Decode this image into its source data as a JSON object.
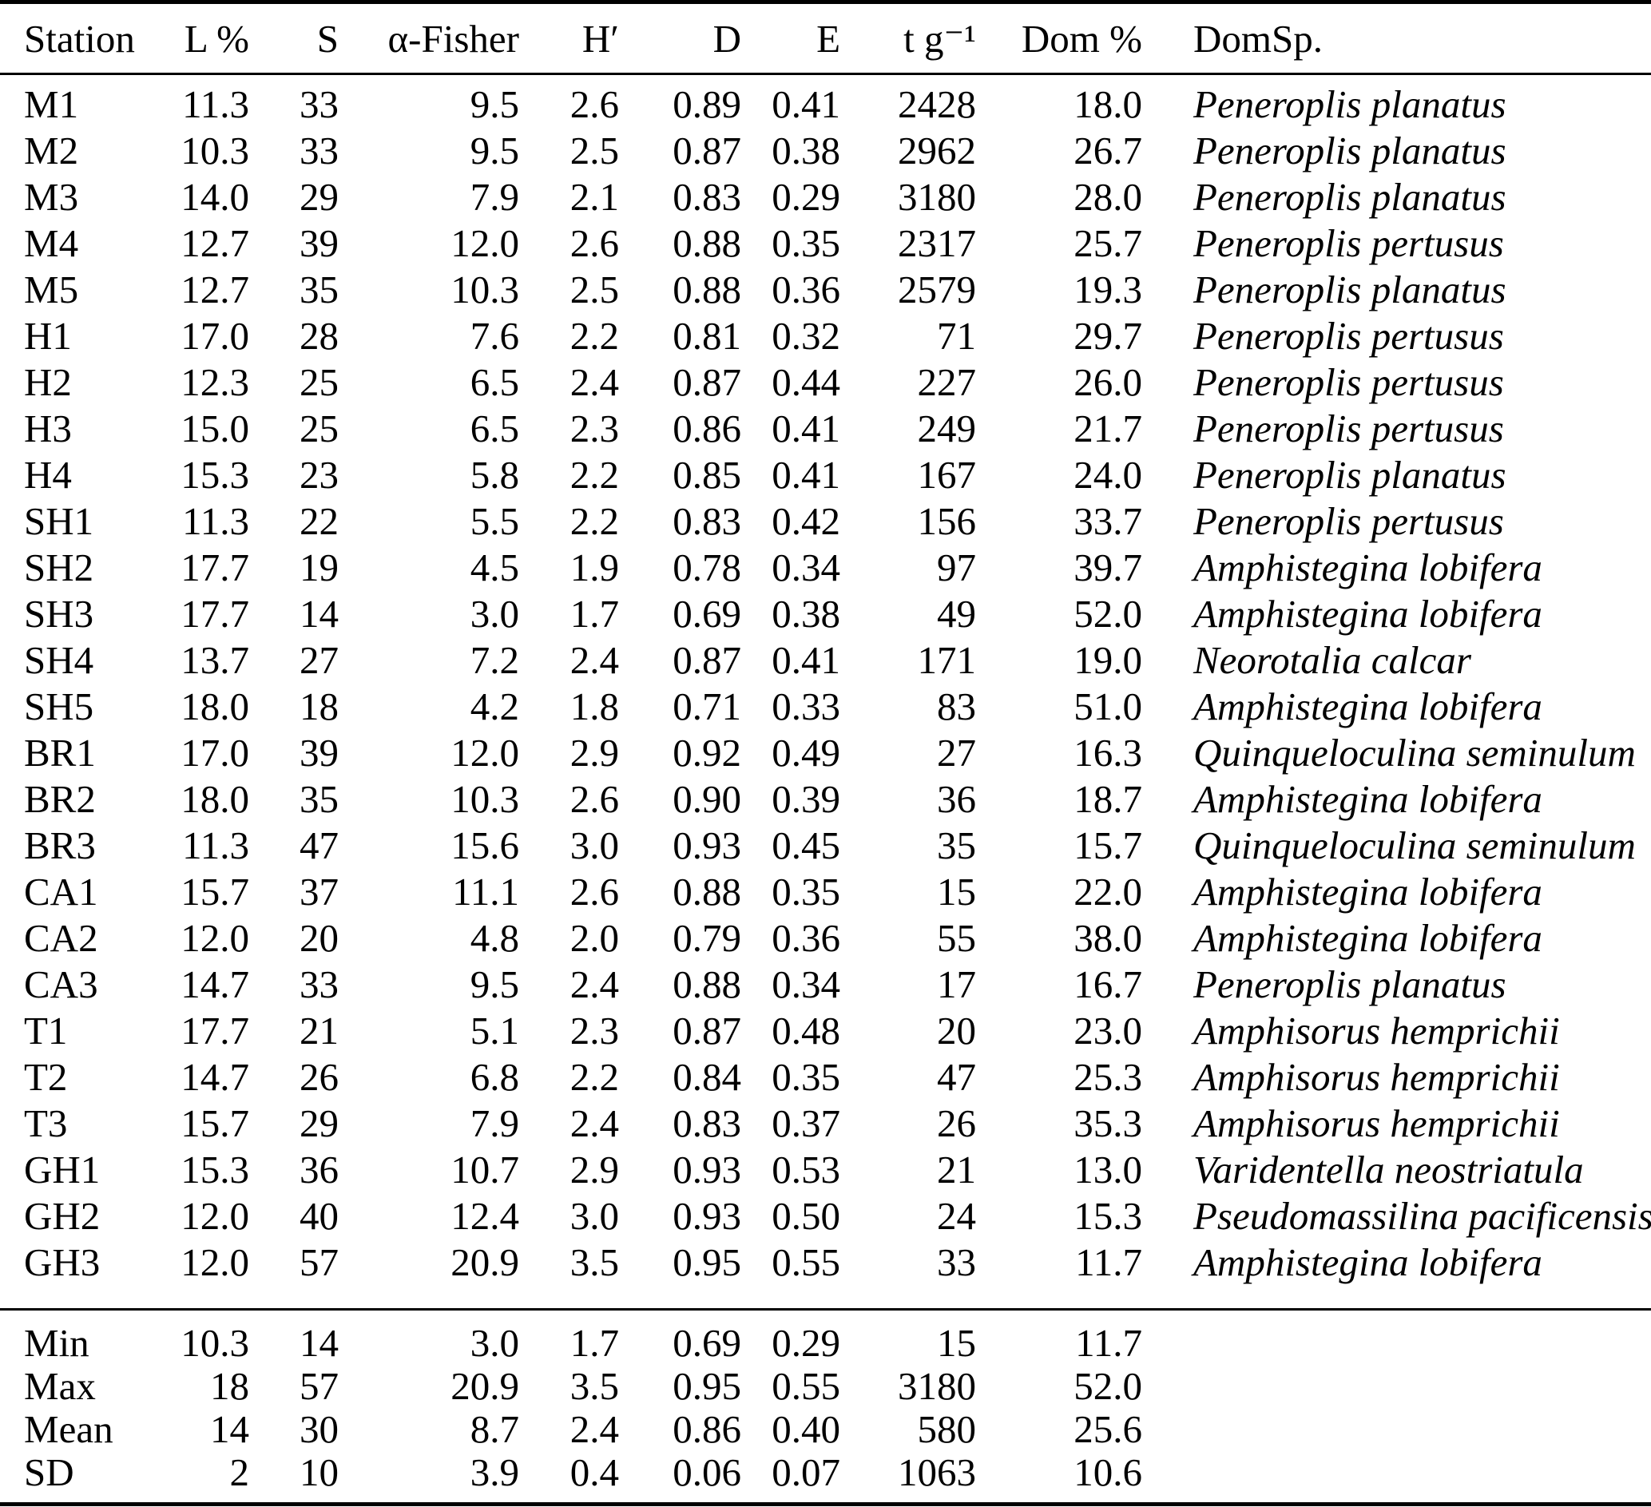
{
  "table": {
    "columns": [
      {
        "key": "station",
        "label": "Station"
      },
      {
        "key": "l_pct",
        "label": "L %"
      },
      {
        "key": "s",
        "label": "S"
      },
      {
        "key": "alpha_fisher",
        "label": "α-Fisher"
      },
      {
        "key": "h_prime",
        "label": "H′"
      },
      {
        "key": "d",
        "label": "D"
      },
      {
        "key": "e",
        "label": "E"
      },
      {
        "key": "t_per_g",
        "label": "t g⁻¹"
      },
      {
        "key": "dom_pct",
        "label": "Dom %"
      },
      {
        "key": "dom_sp",
        "label": "DomSp."
      }
    ],
    "rows": [
      [
        "M1",
        "11.3",
        "33",
        "9.5",
        "2.6",
        "0.89",
        "0.41",
        "2428",
        "18.0",
        "Peneroplis planatus"
      ],
      [
        "M2",
        "10.3",
        "33",
        "9.5",
        "2.5",
        "0.87",
        "0.38",
        "2962",
        "26.7",
        "Peneroplis planatus"
      ],
      [
        "M3",
        "14.0",
        "29",
        "7.9",
        "2.1",
        "0.83",
        "0.29",
        "3180",
        "28.0",
        "Peneroplis planatus"
      ],
      [
        "M4",
        "12.7",
        "39",
        "12.0",
        "2.6",
        "0.88",
        "0.35",
        "2317",
        "25.7",
        "Peneroplis pertusus"
      ],
      [
        "M5",
        "12.7",
        "35",
        "10.3",
        "2.5",
        "0.88",
        "0.36",
        "2579",
        "19.3",
        "Peneroplis planatus"
      ],
      [
        "H1",
        "17.0",
        "28",
        "7.6",
        "2.2",
        "0.81",
        "0.32",
        "71",
        "29.7",
        "Peneroplis pertusus"
      ],
      [
        "H2",
        "12.3",
        "25",
        "6.5",
        "2.4",
        "0.87",
        "0.44",
        "227",
        "26.0",
        "Peneroplis pertusus"
      ],
      [
        "H3",
        "15.0",
        "25",
        "6.5",
        "2.3",
        "0.86",
        "0.41",
        "249",
        "21.7",
        "Peneroplis pertusus"
      ],
      [
        "H4",
        "15.3",
        "23",
        "5.8",
        "2.2",
        "0.85",
        "0.41",
        "167",
        "24.0",
        "Peneroplis planatus"
      ],
      [
        "SH1",
        "11.3",
        "22",
        "5.5",
        "2.2",
        "0.83",
        "0.42",
        "156",
        "33.7",
        "Peneroplis pertusus"
      ],
      [
        "SH2",
        "17.7",
        "19",
        "4.5",
        "1.9",
        "0.78",
        "0.34",
        "97",
        "39.7",
        "Amphistegina lobifera"
      ],
      [
        "SH3",
        "17.7",
        "14",
        "3.0",
        "1.7",
        "0.69",
        "0.38",
        "49",
        "52.0",
        "Amphistegina lobifera"
      ],
      [
        "SH4",
        "13.7",
        "27",
        "7.2",
        "2.4",
        "0.87",
        "0.41",
        "171",
        "19.0",
        "Neorotalia calcar"
      ],
      [
        "SH5",
        "18.0",
        "18",
        "4.2",
        "1.8",
        "0.71",
        "0.33",
        "83",
        "51.0",
        "Amphistegina lobifera"
      ],
      [
        "BR1",
        "17.0",
        "39",
        "12.0",
        "2.9",
        "0.92",
        "0.49",
        "27",
        "16.3",
        "Quinqueloculina seminulum"
      ],
      [
        "BR2",
        "18.0",
        "35",
        "10.3",
        "2.6",
        "0.90",
        "0.39",
        "36",
        "18.7",
        "Amphistegina lobifera"
      ],
      [
        "BR3",
        "11.3",
        "47",
        "15.6",
        "3.0",
        "0.93",
        "0.45",
        "35",
        "15.7",
        "Quinqueloculina seminulum"
      ],
      [
        "CA1",
        "15.7",
        "37",
        "11.1",
        "2.6",
        "0.88",
        "0.35",
        "15",
        "22.0",
        "Amphistegina lobifera"
      ],
      [
        "CA2",
        "12.0",
        "20",
        "4.8",
        "2.0",
        "0.79",
        "0.36",
        "55",
        "38.0",
        "Amphistegina lobifera"
      ],
      [
        "CA3",
        "14.7",
        "33",
        "9.5",
        "2.4",
        "0.88",
        "0.34",
        "17",
        "16.7",
        "Peneroplis planatus"
      ],
      [
        "T1",
        "17.7",
        "21",
        "5.1",
        "2.3",
        "0.87",
        "0.48",
        "20",
        "23.0",
        "Amphisorus hemprichii"
      ],
      [
        "T2",
        "14.7",
        "26",
        "6.8",
        "2.2",
        "0.84",
        "0.35",
        "47",
        "25.3",
        "Amphisorus hemprichii"
      ],
      [
        "T3",
        "15.7",
        "29",
        "7.9",
        "2.4",
        "0.83",
        "0.37",
        "26",
        "35.3",
        "Amphisorus hemprichii"
      ],
      [
        "GH1",
        "15.3",
        "36",
        "10.7",
        "2.9",
        "0.93",
        "0.53",
        "21",
        "13.0",
        "Varidentella neostriatula"
      ],
      [
        "GH2",
        "12.0",
        "40",
        "12.4",
        "3.0",
        "0.93",
        "0.50",
        "24",
        "15.3",
        "Pseudomassilina pacificensis"
      ],
      [
        "GH3",
        "12.0",
        "57",
        "20.9",
        "3.5",
        "0.95",
        "0.55",
        "33",
        "11.7",
        "Amphistegina lobifera"
      ]
    ],
    "summary_rows": [
      [
        "Min",
        "10.3",
        "14",
        "3.0",
        "1.7",
        "0.69",
        "0.29",
        "15",
        "11.7",
        ""
      ],
      [
        "Max",
        "18",
        "57",
        "20.9",
        "3.5",
        "0.95",
        "0.55",
        "3180",
        "52.0",
        ""
      ],
      [
        "Mean",
        "14",
        "30",
        "8.7",
        "2.4",
        "0.86",
        "0.40",
        "580",
        "25.6",
        ""
      ],
      [
        "SD",
        "2",
        "10",
        "3.9",
        "0.4",
        "0.06",
        "0.07",
        "1063",
        "10.6",
        ""
      ]
    ]
  }
}
